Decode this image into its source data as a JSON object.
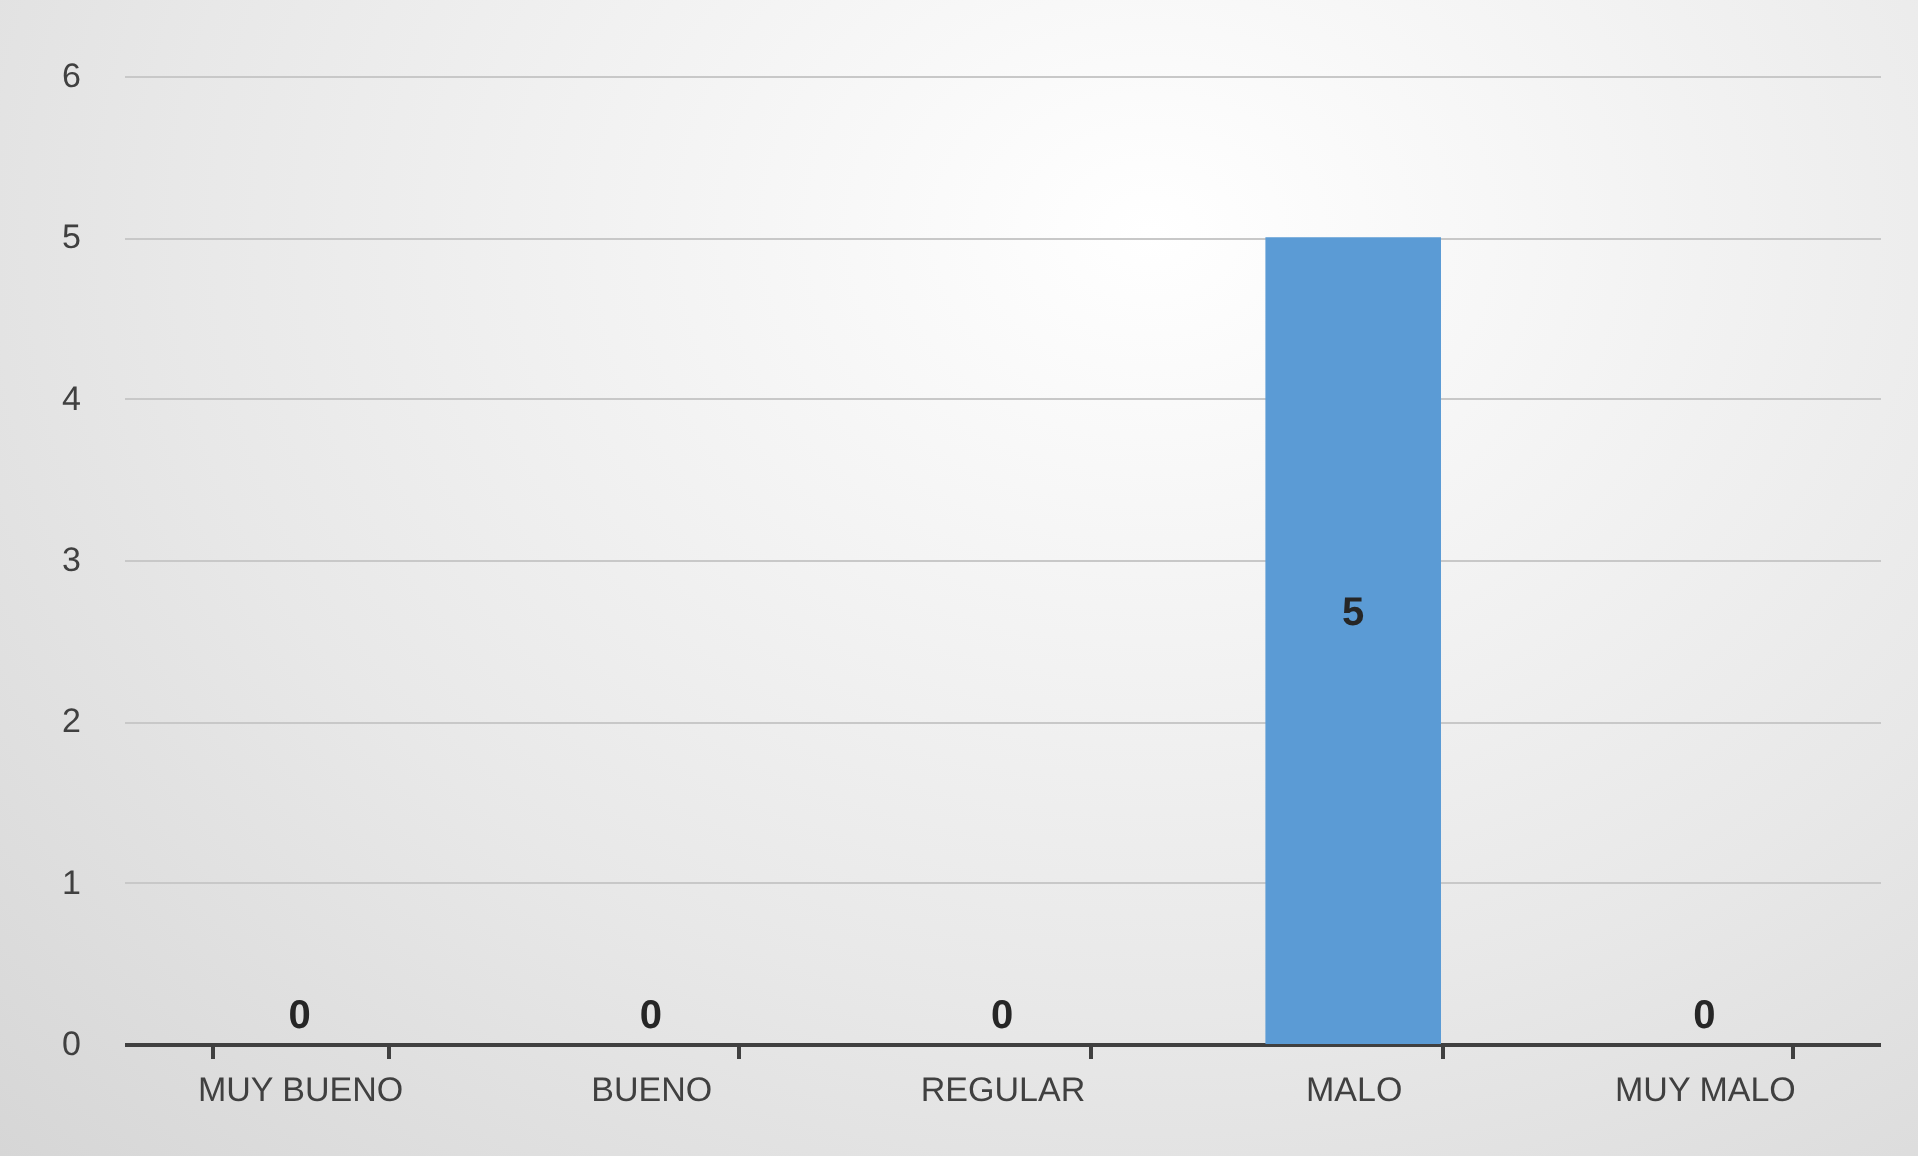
{
  "chart_data": {
    "type": "bar",
    "categories": [
      "MUY BUENO",
      "BUENO",
      "REGULAR",
      "MALO",
      "MUY MALO"
    ],
    "values": [
      0,
      0,
      0,
      5,
      0
    ],
    "color": "#5b9bd5",
    "ylim": [
      0,
      6
    ],
    "yticks": [
      0,
      1,
      2,
      3,
      4,
      5,
      6
    ],
    "grid": "y",
    "data_labels": true
  }
}
